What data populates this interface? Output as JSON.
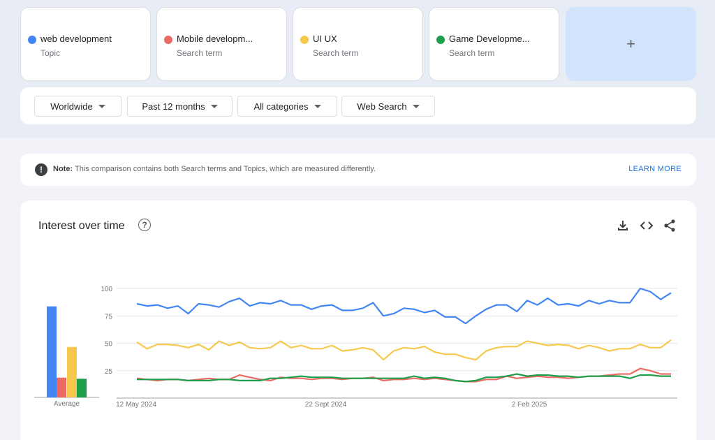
{
  "terms": [
    {
      "name": "web development",
      "sub": "Topic",
      "color": "#4285f4"
    },
    {
      "name": "Mobile developm...",
      "sub": "Search term",
      "color": "#ea6b66"
    },
    {
      "name": "UI UX",
      "sub": "Search term",
      "color": "#f6c94e"
    },
    {
      "name": "Game Developme...",
      "sub": "Search term",
      "color": "#1e9e4a"
    }
  ],
  "add_label": "+",
  "filters": {
    "region": "Worldwide",
    "time": "Past 12 months",
    "category": "All categories",
    "search_type": "Web Search"
  },
  "note": {
    "label": "Note:",
    "text": "This comparison contains both Search terms and Topics, which are measured differently.",
    "link": "LEARN MORE"
  },
  "chart": {
    "title": "Interest over time",
    "icons": [
      "download-icon",
      "embed-icon",
      "share-icon"
    ]
  },
  "chart_data": {
    "type": "line",
    "average_label": "Average",
    "averages": [
      83,
      18,
      46,
      17
    ],
    "ylim": [
      0,
      100
    ],
    "yticks": [
      100,
      75,
      50,
      25
    ],
    "xtick_labels": [
      "12 May 2024",
      "22 Sept 2024",
      "2 Feb 2025"
    ],
    "grid": true,
    "series": [
      {
        "name": "web development",
        "color": "#4285f4",
        "values": [
          86,
          84,
          85,
          82,
          84,
          77,
          86,
          85,
          83,
          88,
          91,
          84,
          87,
          86,
          89,
          85,
          85,
          81,
          84,
          85,
          80,
          80,
          82,
          87,
          75,
          77,
          82,
          81,
          78,
          80,
          74,
          74,
          68,
          75,
          81,
          85,
          85,
          79,
          89,
          85,
          91,
          85,
          86,
          84,
          89,
          86,
          89,
          87,
          87,
          100,
          97,
          90,
          96
        ]
      },
      {
        "name": "Mobile developm...",
        "color": "#ea6b66",
        "values": [
          18,
          17,
          16,
          17,
          17,
          16,
          17,
          18,
          17,
          17,
          21,
          19,
          17,
          16,
          19,
          18,
          18,
          17,
          18,
          18,
          17,
          18,
          18,
          19,
          16,
          17,
          17,
          18,
          17,
          18,
          17,
          16,
          15,
          15,
          17,
          17,
          20,
          18,
          19,
          20,
          19,
          19,
          18,
          19,
          20,
          20,
          21,
          22,
          22,
          27,
          25,
          22,
          22
        ]
      },
      {
        "name": "UI UX",
        "color": "#f6c94e",
        "values": [
          51,
          45,
          49,
          49,
          48,
          46,
          49,
          44,
          52,
          48,
          51,
          46,
          45,
          46,
          52,
          46,
          48,
          45,
          45,
          48,
          43,
          44,
          46,
          44,
          35,
          43,
          46,
          45,
          47,
          42,
          40,
          40,
          37,
          35,
          43,
          46,
          47,
          47,
          52,
          50,
          48,
          49,
          48,
          45,
          48,
          46,
          43,
          45,
          45,
          49,
          46,
          46,
          53
        ]
      },
      {
        "name": "Game Developme...",
        "color": "#1e9e4a",
        "values": [
          17,
          17,
          17,
          17,
          17,
          16,
          16,
          16,
          17,
          17,
          16,
          16,
          16,
          18,
          18,
          19,
          20,
          19,
          19,
          19,
          18,
          18,
          18,
          18,
          18,
          18,
          18,
          20,
          18,
          19,
          18,
          16,
          15,
          16,
          19,
          19,
          20,
          22,
          20,
          21,
          21,
          20,
          20,
          19,
          20,
          20,
          20,
          20,
          18,
          21,
          21,
          20,
          20
        ]
      }
    ]
  }
}
